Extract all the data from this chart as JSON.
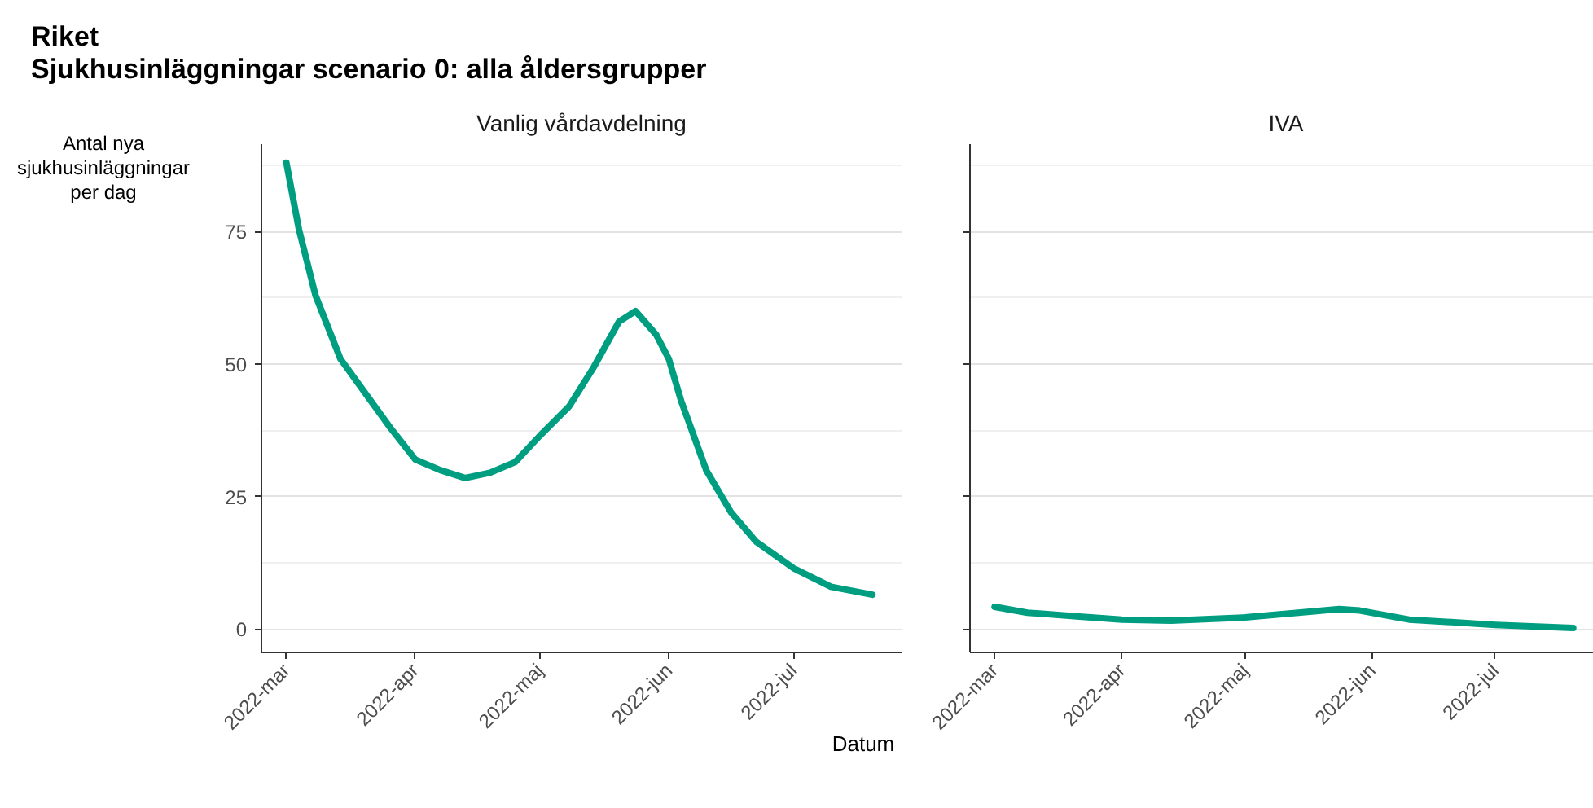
{
  "chart_data": [
    {
      "type": "line",
      "title": "Vanlig vårdavdelning",
      "annotations": [
        "Riket",
        "Sjukhusinläggningar scenario 0: alla åldersgrupper"
      ],
      "ylabel": "Antal nya sjukhusinläggningar per dag",
      "xlabel": "Datum",
      "x": [
        "2022-03-01",
        "2022-03-04",
        "2022-03-08",
        "2022-03-14",
        "2022-03-20",
        "2022-03-26",
        "2022-04-01",
        "2022-04-07",
        "2022-04-13",
        "2022-04-19",
        "2022-04-25",
        "2022-05-01",
        "2022-05-08",
        "2022-05-14",
        "2022-05-20",
        "2022-05-24",
        "2022-05-29",
        "2022-06-01",
        "2022-06-04",
        "2022-06-10",
        "2022-06-16",
        "2022-06-22",
        "2022-07-01",
        "2022-07-10",
        "2022-07-20"
      ],
      "series": [
        {
          "color": "#009e80",
          "values": [
            88,
            75.5,
            63,
            51,
            44.5,
            38,
            32,
            30,
            28.5,
            29.5,
            31.5,
            36.5,
            42,
            49.5,
            58,
            60,
            55.5,
            51,
            43,
            30,
            22,
            16.5,
            11.5,
            8,
            6.5
          ]
        }
      ],
      "xlim": [
        "2022-02-23",
        "2022-07-27"
      ],
      "xticks": [
        {
          "value": "2022-03-01",
          "label": "2022-mar"
        },
        {
          "value": "2022-04-01",
          "label": "2022-apr"
        },
        {
          "value": "2022-05-01",
          "label": "2022-maj"
        },
        {
          "value": "2022-06-01",
          "label": "2022-jun"
        },
        {
          "value": "2022-07-01",
          "label": "2022-jul"
        }
      ],
      "ylim": [
        -4.4,
        91.5
      ],
      "yticks": [
        0,
        25,
        50,
        75
      ],
      "grid": "y",
      "line_style": "solid"
    },
    {
      "type": "line",
      "title": "IVA",
      "x": [
        "2022-03-01",
        "2022-03-09",
        "2022-03-21",
        "2022-04-01",
        "2022-04-13",
        "2022-05-01",
        "2022-05-14",
        "2022-05-24",
        "2022-05-29",
        "2022-06-10",
        "2022-07-01",
        "2022-07-20"
      ],
      "series": [
        {
          "color": "#009e80",
          "values": [
            4.2,
            3.1,
            2.4,
            1.8,
            1.6,
            2.2,
            3.1,
            3.8,
            3.5,
            1.8,
            0.8,
            0.2
          ]
        }
      ],
      "xlim": [
        "2022-02-23",
        "2022-07-27"
      ],
      "xticks": [
        {
          "value": "2022-03-01",
          "label": "2022-mar"
        },
        {
          "value": "2022-04-01",
          "label": "2022-apr"
        },
        {
          "value": "2022-05-01",
          "label": "2022-maj"
        },
        {
          "value": "2022-06-01",
          "label": "2022-jun"
        },
        {
          "value": "2022-07-01",
          "label": "2022-jul"
        }
      ],
      "ylim": [
        -4.4,
        91.5
      ],
      "yticks": [
        0,
        25,
        50,
        75
      ],
      "grid": "y",
      "line_style": "solid",
      "tick_labels": "x"
    }
  ]
}
